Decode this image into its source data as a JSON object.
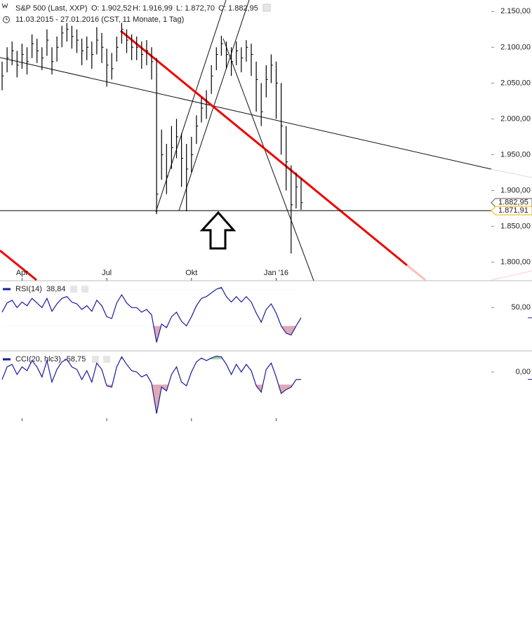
{
  "chart_data": [
    {
      "type": "ohlc",
      "title": "S&P 500 (Last, XXP)",
      "stats": [
        "O: 1.902,52",
        "H: 1.916,99",
        "L: 1.872,70",
        "C: 1.882,95"
      ],
      "subtitle": "11.03.2015 - 27.01.2016 (CST, 11 Monate, 1 Tag)",
      "categories": [
        null,
        null,
        null,
        null,
        "Apr",
        null,
        null,
        null,
        null,
        null,
        null,
        null,
        null,
        null,
        null,
        null,
        null,
        null,
        null,
        null,
        null,
        "Jul",
        null,
        null,
        null,
        null,
        null,
        null,
        null,
        null,
        null,
        null,
        null,
        null,
        null,
        null,
        null,
        null,
        "Okt",
        null,
        null,
        null,
        null,
        null,
        null,
        null,
        null,
        null,
        null,
        null,
        null,
        null,
        null,
        null,
        null,
        "Jan '16",
        null,
        null,
        null,
        null,
        null
      ],
      "high": [
        2080,
        2100,
        2108,
        2095,
        2105,
        2100,
        2118,
        2112,
        2100,
        2125,
        2100,
        2115,
        2130,
        2134,
        2130,
        2125,
        2112,
        2115,
        2108,
        2128,
        2120,
        2098,
        2092,
        2115,
        2134,
        2125,
        2118,
        2115,
        2108,
        2110,
        2100,
        2085,
        1985,
        1965,
        1990,
        2000,
        1980,
        1965,
        1975,
        2005,
        2030,
        2040,
        2075,
        2100,
        2116,
        2108,
        2100,
        2108,
        2100,
        2110,
        2105,
        2080,
        2050,
        2075,
        2090,
        2080,
        2050,
        1990,
        1935,
        1925,
        1917
      ],
      "low": [
        2040,
        2065,
        2075,
        2058,
        2070,
        2062,
        2085,
        2078,
        2068,
        2088,
        2062,
        2080,
        2100,
        2108,
        2098,
        2092,
        2075,
        2082,
        2070,
        2090,
        2078,
        2045,
        2055,
        2080,
        2105,
        2092,
        2082,
        2082,
        2070,
        2075,
        2055,
        1867,
        1915,
        1895,
        1930,
        1945,
        1905,
        1871,
        1925,
        1965,
        1995,
        2000,
        2035,
        2068,
        2088,
        2070,
        2060,
        2075,
        2065,
        2080,
        2060,
        2010,
        1990,
        2030,
        2050,
        2000,
        1950,
        1900,
        1812,
        1875,
        1873
      ],
      "close": [
        2060,
        2085,
        2095,
        2075,
        2090,
        2080,
        2105,
        2095,
        2085,
        2110,
        2080,
        2100,
        2120,
        2125,
        2115,
        2110,
        2095,
        2100,
        2090,
        2110,
        2100,
        2075,
        2070,
        2100,
        2125,
        2110,
        2100,
        2100,
        2090,
        2095,
        2080,
        1895,
        1950,
        1920,
        1960,
        1975,
        1945,
        1930,
        1950,
        1990,
        2015,
        2020,
        2060,
        2090,
        2105,
        2090,
        2080,
        2095,
        2085,
        2100,
        2090,
        2055,
        2010,
        2055,
        2075,
        2050,
        1990,
        1940,
        1880,
        1905,
        1882.95
      ],
      "color": "#000000",
      "ylim": [
        1774,
        2166
      ],
      "yticks": [
        {
          "value": 1800,
          "label": "1.800,00"
        },
        {
          "value": 1850,
          "label": "1.850,00"
        },
        {
          "value": 1900,
          "label": "1.900,00"
        },
        {
          "value": 1950,
          "label": "1.950,00"
        },
        {
          "value": 2000,
          "label": "2.000,00"
        },
        {
          "value": 2050,
          "label": "2.050,00"
        },
        {
          "value": 2100,
          "label": "2.100,00"
        },
        {
          "value": 2150,
          "label": "2.150,00"
        }
      ],
      "markers": [
        {
          "value": 1882.95,
          "label": "1.882,95"
        },
        {
          "value": 1871.91,
          "label": "1.871,91"
        }
      ]
    },
    {
      "type": "line",
      "series": [
        {
          "name": "RSI(14)",
          "color": "#1a1aa0",
          "values": [
            45,
            55,
            58,
            50,
            56,
            52,
            60,
            55,
            50,
            60,
            46,
            54,
            60,
            62,
            56,
            54,
            48,
            52,
            46,
            58,
            52,
            40,
            38,
            55,
            64,
            55,
            50,
            50,
            45,
            48,
            42,
            12,
            32,
            28,
            40,
            45,
            35,
            30,
            40,
            52,
            60,
            62,
            66,
            70,
            72,
            62,
            56,
            62,
            56,
            62,
            56,
            44,
            34,
            48,
            54,
            44,
            30,
            22,
            20,
            30,
            38.84
          ]
        }
      ],
      "current": {
        "value": 38.84,
        "label": "38,84"
      },
      "shade_below": 30,
      "shade_above": 70,
      "ylim": [
        5,
        77
      ],
      "yticks": [
        {
          "value": 50,
          "label": "50,00"
        }
      ]
    },
    {
      "type": "line",
      "series": [
        {
          "name": "CCI(20, hlc3)",
          "color": "#1a1aa0",
          "values": [
            -60,
            40,
            60,
            -20,
            40,
            10,
            90,
            40,
            -40,
            90,
            -80,
            20,
            80,
            100,
            40,
            20,
            -60,
            10,
            -80,
            70,
            20,
            -110,
            -120,
            40,
            120,
            60,
            10,
            0,
            -40,
            -20,
            -90,
            -330,
            -120,
            -150,
            -20,
            40,
            -80,
            -110,
            0,
            80,
            110,
            90,
            110,
            125,
            120,
            60,
            -20,
            60,
            0,
            60,
            10,
            -110,
            -160,
            20,
            70,
            -40,
            -170,
            -140,
            -120,
            -60,
            -58.75
          ]
        }
      ],
      "current": {
        "value": -58.75,
        "label": "-58,75"
      },
      "shade_below": -100,
      "shade_above": 100,
      "ylim": [
        -372,
        150
      ],
      "yticks": [
        {
          "value": 0,
          "label": "0,00"
        }
      ]
    }
  ]
}
